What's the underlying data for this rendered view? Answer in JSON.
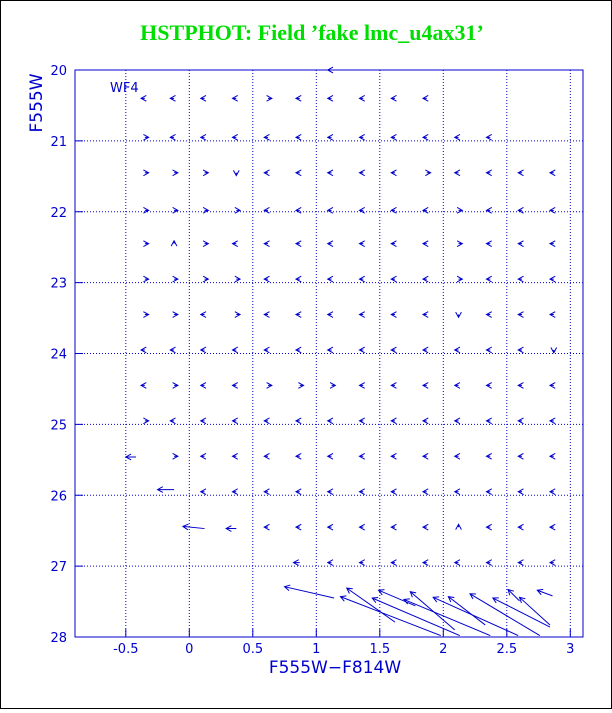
{
  "chart_data": {
    "type": "quiver",
    "title": "HSTPHOT: Field ’fake lmc_u4ax31’",
    "annotation": "WF4",
    "x_label": "F555W−F814W",
    "y_label": "F555W",
    "color": "#0000cc",
    "grid": true,
    "y_inverted": true,
    "xlim": [
      -0.9,
      3.1
    ],
    "ylim": [
      20,
      28
    ],
    "xticks": [
      -0.5,
      0,
      0.5,
      1,
      1.5,
      2,
      2.5,
      3
    ],
    "yticks": [
      20,
      21,
      22,
      23,
      24,
      25,
      26,
      27,
      28
    ],
    "vectors": [
      {
        "x": 1.12,
        "y": 20.0,
        "u": -0.03,
        "v": 0
      },
      {
        "x": -0.35,
        "y": 20.4,
        "u": -0.03,
        "v": 0
      },
      {
        "x": -0.12,
        "y": 20.4,
        "u": -0.03,
        "v": 0
      },
      {
        "x": 0.12,
        "y": 20.4,
        "u": -0.03,
        "v": 0
      },
      {
        "x": 0.37,
        "y": 20.4,
        "u": -0.03,
        "v": 0
      },
      {
        "x": 0.62,
        "y": 20.4,
        "u": 0.03,
        "v": 0
      },
      {
        "x": 0.87,
        "y": 20.4,
        "u": -0.03,
        "v": 0
      },
      {
        "x": 1.12,
        "y": 20.4,
        "u": -0.03,
        "v": 0
      },
      {
        "x": 1.37,
        "y": 20.4,
        "u": -0.03,
        "v": 0
      },
      {
        "x": 1.62,
        "y": 20.4,
        "u": -0.03,
        "v": 0
      },
      {
        "x": 1.87,
        "y": 20.4,
        "u": -0.03,
        "v": 0
      },
      {
        "x": -0.35,
        "y": 20.95,
        "u": 0.03,
        "v": 0
      },
      {
        "x": -0.12,
        "y": 20.95,
        "u": -0.03,
        "v": 0
      },
      {
        "x": 0.12,
        "y": 20.95,
        "u": -0.03,
        "v": 0
      },
      {
        "x": 0.37,
        "y": 20.95,
        "u": -0.03,
        "v": 0
      },
      {
        "x": 0.62,
        "y": 20.95,
        "u": -0.03,
        "v": 0
      },
      {
        "x": 0.87,
        "y": 20.95,
        "u": -0.03,
        "v": 0
      },
      {
        "x": 1.12,
        "y": 20.95,
        "u": -0.03,
        "v": 0
      },
      {
        "x": 1.37,
        "y": 20.95,
        "u": -0.03,
        "v": 0
      },
      {
        "x": 1.62,
        "y": 20.95,
        "u": -0.03,
        "v": 0
      },
      {
        "x": 1.87,
        "y": 20.95,
        "u": -0.03,
        "v": 0
      },
      {
        "x": 2.12,
        "y": 20.95,
        "u": -0.03,
        "v": 0
      },
      {
        "x": 2.37,
        "y": 20.95,
        "u": -0.03,
        "v": 0
      },
      {
        "x": -0.35,
        "y": 21.45,
        "u": 0.03,
        "v": 0
      },
      {
        "x": -0.12,
        "y": 21.45,
        "u": 0.03,
        "v": 0
      },
      {
        "x": 0.12,
        "y": 21.45,
        "u": 0.03,
        "v": 0
      },
      {
        "x": 0.37,
        "y": 21.45,
        "u": 0,
        "v": 0.04
      },
      {
        "x": 0.62,
        "y": 21.45,
        "u": -0.03,
        "v": 0
      },
      {
        "x": 0.87,
        "y": 21.45,
        "u": -0.03,
        "v": 0
      },
      {
        "x": 1.12,
        "y": 21.45,
        "u": -0.03,
        "v": 0
      },
      {
        "x": 1.37,
        "y": 21.45,
        "u": -0.03,
        "v": 0
      },
      {
        "x": 1.62,
        "y": 21.45,
        "u": -0.03,
        "v": 0
      },
      {
        "x": 1.87,
        "y": 21.45,
        "u": 0.03,
        "v": 0
      },
      {
        "x": 2.12,
        "y": 21.45,
        "u": -0.03,
        "v": 0
      },
      {
        "x": 2.37,
        "y": 21.45,
        "u": -0.03,
        "v": 0
      },
      {
        "x": 2.62,
        "y": 21.45,
        "u": -0.03,
        "v": 0
      },
      {
        "x": 2.87,
        "y": 21.45,
        "u": -0.03,
        "v": 0
      },
      {
        "x": -0.35,
        "y": 21.98,
        "u": 0.03,
        "v": 0
      },
      {
        "x": -0.12,
        "y": 21.98,
        "u": 0.03,
        "v": 0
      },
      {
        "x": 0.12,
        "y": 21.98,
        "u": 0.03,
        "v": 0
      },
      {
        "x": 0.37,
        "y": 21.98,
        "u": 0.03,
        "v": 0
      },
      {
        "x": 0.62,
        "y": 21.98,
        "u": -0.03,
        "v": 0
      },
      {
        "x": 0.87,
        "y": 21.98,
        "u": -0.03,
        "v": 0
      },
      {
        "x": 1.12,
        "y": 21.98,
        "u": -0.03,
        "v": 0
      },
      {
        "x": 1.37,
        "y": 21.98,
        "u": -0.03,
        "v": 0
      },
      {
        "x": 1.62,
        "y": 21.98,
        "u": -0.03,
        "v": 0
      },
      {
        "x": 1.87,
        "y": 21.98,
        "u": -0.03,
        "v": 0
      },
      {
        "x": 2.12,
        "y": 21.98,
        "u": 0.03,
        "v": 0
      },
      {
        "x": 2.37,
        "y": 21.98,
        "u": -0.03,
        "v": 0
      },
      {
        "x": 2.62,
        "y": 21.98,
        "u": -0.03,
        "v": 0
      },
      {
        "x": 2.87,
        "y": 21.98,
        "u": -0.03,
        "v": 0
      },
      {
        "x": -0.35,
        "y": 22.45,
        "u": 0.03,
        "v": 0
      },
      {
        "x": -0.12,
        "y": 22.45,
        "u": 0,
        "v": -0.04
      },
      {
        "x": 0.12,
        "y": 22.45,
        "u": 0.03,
        "v": 0
      },
      {
        "x": 0.37,
        "y": 22.45,
        "u": -0.03,
        "v": 0
      },
      {
        "x": 0.62,
        "y": 22.45,
        "u": -0.03,
        "v": 0
      },
      {
        "x": 0.87,
        "y": 22.45,
        "u": -0.03,
        "v": 0
      },
      {
        "x": 1.12,
        "y": 22.45,
        "u": -0.03,
        "v": 0
      },
      {
        "x": 1.37,
        "y": 22.45,
        "u": -0.03,
        "v": 0
      },
      {
        "x": 1.62,
        "y": 22.45,
        "u": -0.03,
        "v": 0
      },
      {
        "x": 1.87,
        "y": 22.45,
        "u": -0.03,
        "v": 0
      },
      {
        "x": 2.12,
        "y": 22.45,
        "u": 0.03,
        "v": 0
      },
      {
        "x": 2.37,
        "y": 22.45,
        "u": -0.03,
        "v": 0
      },
      {
        "x": 2.62,
        "y": 22.45,
        "u": -0.03,
        "v": 0
      },
      {
        "x": 2.87,
        "y": 22.45,
        "u": -0.03,
        "v": 0
      },
      {
        "x": -0.35,
        "y": 22.95,
        "u": 0.03,
        "v": 0
      },
      {
        "x": -0.12,
        "y": 22.95,
        "u": 0.03,
        "v": 0
      },
      {
        "x": 0.12,
        "y": 22.95,
        "u": 0.03,
        "v": 0
      },
      {
        "x": 0.37,
        "y": 22.95,
        "u": 0.03,
        "v": 0
      },
      {
        "x": 0.62,
        "y": 22.95,
        "u": -0.03,
        "v": 0
      },
      {
        "x": 0.87,
        "y": 22.95,
        "u": -0.03,
        "v": 0
      },
      {
        "x": 1.12,
        "y": 22.95,
        "u": -0.03,
        "v": 0
      },
      {
        "x": 1.37,
        "y": 22.95,
        "u": -0.03,
        "v": 0
      },
      {
        "x": 1.62,
        "y": 22.95,
        "u": -0.03,
        "v": 0
      },
      {
        "x": 1.87,
        "y": 22.95,
        "u": -0.03,
        "v": 0
      },
      {
        "x": 2.12,
        "y": 22.95,
        "u": 0.03,
        "v": 0
      },
      {
        "x": 2.37,
        "y": 22.95,
        "u": -0.03,
        "v": 0
      },
      {
        "x": 2.62,
        "y": 22.95,
        "u": -0.03,
        "v": 0
      },
      {
        "x": 2.87,
        "y": 22.95,
        "u": -0.03,
        "v": 0
      },
      {
        "x": -0.35,
        "y": 23.45,
        "u": 0.03,
        "v": 0
      },
      {
        "x": -0.12,
        "y": 23.45,
        "u": 0.03,
        "v": 0
      },
      {
        "x": 0.12,
        "y": 23.45,
        "u": -0.03,
        "v": 0
      },
      {
        "x": 0.37,
        "y": 23.45,
        "u": 0.03,
        "v": 0
      },
      {
        "x": 0.62,
        "y": 23.45,
        "u": -0.03,
        "v": 0
      },
      {
        "x": 0.87,
        "y": 23.45,
        "u": -0.03,
        "v": 0
      },
      {
        "x": 1.12,
        "y": 23.45,
        "u": -0.03,
        "v": 0
      },
      {
        "x": 1.37,
        "y": 23.45,
        "u": -0.03,
        "v": 0
      },
      {
        "x": 1.62,
        "y": 23.45,
        "u": -0.03,
        "v": 0
      },
      {
        "x": 1.87,
        "y": 23.45,
        "u": -0.03,
        "v": 0
      },
      {
        "x": 2.12,
        "y": 23.45,
        "u": 0,
        "v": 0.04
      },
      {
        "x": 2.37,
        "y": 23.45,
        "u": -0.03,
        "v": 0
      },
      {
        "x": 2.62,
        "y": 23.45,
        "u": -0.03,
        "v": 0
      },
      {
        "x": 2.87,
        "y": 23.45,
        "u": -0.03,
        "v": 0
      },
      {
        "x": -0.35,
        "y": 23.95,
        "u": -0.03,
        "v": 0
      },
      {
        "x": -0.12,
        "y": 23.95,
        "u": -0.03,
        "v": 0
      },
      {
        "x": 0.12,
        "y": 23.95,
        "u": -0.03,
        "v": 0
      },
      {
        "x": 0.37,
        "y": 23.95,
        "u": -0.03,
        "v": 0
      },
      {
        "x": 0.62,
        "y": 23.95,
        "u": -0.03,
        "v": 0
      },
      {
        "x": 0.87,
        "y": 23.95,
        "u": -0.03,
        "v": 0
      },
      {
        "x": 1.12,
        "y": 23.95,
        "u": -0.03,
        "v": 0
      },
      {
        "x": 1.37,
        "y": 23.95,
        "u": -0.03,
        "v": 0
      },
      {
        "x": 1.62,
        "y": 23.95,
        "u": -0.03,
        "v": 0
      },
      {
        "x": 1.87,
        "y": 23.95,
        "u": -0.03,
        "v": 0
      },
      {
        "x": 2.12,
        "y": 23.95,
        "u": -0.03,
        "v": 0
      },
      {
        "x": 2.37,
        "y": 23.95,
        "u": -0.03,
        "v": 0
      },
      {
        "x": 2.62,
        "y": 23.95,
        "u": -0.03,
        "v": 0
      },
      {
        "x": 2.87,
        "y": 23.95,
        "u": 0,
        "v": 0.04
      },
      {
        "x": -0.35,
        "y": 24.45,
        "u": -0.03,
        "v": 0
      },
      {
        "x": -0.12,
        "y": 24.45,
        "u": 0.03,
        "v": 0
      },
      {
        "x": 0.12,
        "y": 24.45,
        "u": -0.03,
        "v": 0
      },
      {
        "x": 0.37,
        "y": 24.45,
        "u": -0.03,
        "v": 0
      },
      {
        "x": 0.62,
        "y": 24.45,
        "u": 0.03,
        "v": 0
      },
      {
        "x": 0.87,
        "y": 24.45,
        "u": 0.03,
        "v": 0
      },
      {
        "x": 1.12,
        "y": 24.45,
        "u": 0.03,
        "v": 0
      },
      {
        "x": 1.37,
        "y": 24.45,
        "u": -0.03,
        "v": 0
      },
      {
        "x": 1.62,
        "y": 24.45,
        "u": -0.03,
        "v": 0
      },
      {
        "x": 1.87,
        "y": 24.45,
        "u": -0.03,
        "v": 0
      },
      {
        "x": 2.12,
        "y": 24.45,
        "u": -0.03,
        "v": 0
      },
      {
        "x": 2.37,
        "y": 24.45,
        "u": -0.03,
        "v": 0
      },
      {
        "x": 2.62,
        "y": 24.45,
        "u": -0.03,
        "v": 0
      },
      {
        "x": 2.87,
        "y": 24.45,
        "u": -0.03,
        "v": 0
      },
      {
        "x": -0.35,
        "y": 24.95,
        "u": 0.03,
        "v": 0
      },
      {
        "x": -0.12,
        "y": 24.95,
        "u": -0.03,
        "v": 0
      },
      {
        "x": 0.12,
        "y": 24.95,
        "u": -0.03,
        "v": 0
      },
      {
        "x": 0.37,
        "y": 24.95,
        "u": -0.03,
        "v": 0
      },
      {
        "x": 0.62,
        "y": 24.95,
        "u": -0.03,
        "v": 0
      },
      {
        "x": 0.87,
        "y": 24.95,
        "u": -0.03,
        "v": 0
      },
      {
        "x": 1.12,
        "y": 24.95,
        "u": -0.03,
        "v": 0
      },
      {
        "x": 1.37,
        "y": 24.95,
        "u": -0.03,
        "v": 0
      },
      {
        "x": 1.62,
        "y": 24.95,
        "u": -0.03,
        "v": 0
      },
      {
        "x": 1.87,
        "y": 24.95,
        "u": -0.03,
        "v": 0
      },
      {
        "x": 2.12,
        "y": 24.95,
        "u": -0.03,
        "v": 0
      },
      {
        "x": 2.37,
        "y": 24.95,
        "u": -0.03,
        "v": 0
      },
      {
        "x": 2.62,
        "y": 24.95,
        "u": -0.03,
        "v": 0
      },
      {
        "x": 2.87,
        "y": 24.95,
        "u": -0.03,
        "v": 0
      },
      {
        "x": -0.42,
        "y": 25.46,
        "u": -0.08,
        "v": 0
      },
      {
        "x": -0.12,
        "y": 25.45,
        "u": 0.03,
        "v": 0
      },
      {
        "x": 0.12,
        "y": 25.45,
        "u": -0.03,
        "v": 0
      },
      {
        "x": 0.37,
        "y": 25.45,
        "u": -0.03,
        "v": 0
      },
      {
        "x": 0.62,
        "y": 25.45,
        "u": -0.03,
        "v": 0
      },
      {
        "x": 0.87,
        "y": 25.45,
        "u": -0.03,
        "v": 0
      },
      {
        "x": 1.12,
        "y": 25.45,
        "u": -0.03,
        "v": 0
      },
      {
        "x": 1.37,
        "y": 25.45,
        "u": -0.03,
        "v": 0
      },
      {
        "x": 1.62,
        "y": 25.45,
        "u": -0.03,
        "v": 0
      },
      {
        "x": 1.87,
        "y": 25.45,
        "u": -0.03,
        "v": 0
      },
      {
        "x": 2.12,
        "y": 25.45,
        "u": -0.03,
        "v": 0
      },
      {
        "x": 2.37,
        "y": 25.45,
        "u": -0.03,
        "v": 0
      },
      {
        "x": 2.62,
        "y": 25.45,
        "u": -0.03,
        "v": 0
      },
      {
        "x": 2.87,
        "y": 25.45,
        "u": -0.03,
        "v": 0
      },
      {
        "x": -0.12,
        "y": 25.92,
        "u": -0.13,
        "v": 0
      },
      {
        "x": 0.12,
        "y": 25.95,
        "u": -0.03,
        "v": 0
      },
      {
        "x": 0.37,
        "y": 25.95,
        "u": -0.03,
        "v": 0
      },
      {
        "x": 0.62,
        "y": 25.95,
        "u": -0.03,
        "v": 0
      },
      {
        "x": 0.87,
        "y": 25.95,
        "u": -0.03,
        "v": 0
      },
      {
        "x": 1.12,
        "y": 25.95,
        "u": -0.03,
        "v": 0
      },
      {
        "x": 1.37,
        "y": 25.95,
        "u": -0.03,
        "v": 0
      },
      {
        "x": 1.62,
        "y": 25.95,
        "u": -0.03,
        "v": 0
      },
      {
        "x": 1.87,
        "y": 25.95,
        "u": -0.03,
        "v": 0
      },
      {
        "x": 2.12,
        "y": 25.95,
        "u": -0.03,
        "v": 0
      },
      {
        "x": 2.37,
        "y": 25.95,
        "u": -0.03,
        "v": 0
      },
      {
        "x": 2.62,
        "y": 25.95,
        "u": -0.03,
        "v": 0
      },
      {
        "x": 2.87,
        "y": 25.95,
        "u": -0.03,
        "v": 0
      },
      {
        "x": 0.12,
        "y": 26.47,
        "u": -0.17,
        "v": -0.03
      },
      {
        "x": 0.37,
        "y": 26.47,
        "u": -0.08,
        "v": 0
      },
      {
        "x": 0.62,
        "y": 26.45,
        "u": -0.03,
        "v": 0
      },
      {
        "x": 0.87,
        "y": 26.45,
        "u": -0.03,
        "v": 0
      },
      {
        "x": 1.12,
        "y": 26.45,
        "u": -0.03,
        "v": 0
      },
      {
        "x": 1.37,
        "y": 26.45,
        "u": -0.03,
        "v": 0
      },
      {
        "x": 1.62,
        "y": 26.45,
        "u": -0.03,
        "v": 0
      },
      {
        "x": 1.87,
        "y": 26.45,
        "u": -0.03,
        "v": 0
      },
      {
        "x": 2.12,
        "y": 26.45,
        "u": 0,
        "v": -0.04
      },
      {
        "x": 2.37,
        "y": 26.45,
        "u": -0.03,
        "v": 0
      },
      {
        "x": 2.62,
        "y": 26.45,
        "u": -0.03,
        "v": 0
      },
      {
        "x": 2.87,
        "y": 26.45,
        "u": -0.03,
        "v": 0
      },
      {
        "x": 0.87,
        "y": 26.95,
        "u": -0.05,
        "v": 0
      },
      {
        "x": 1.12,
        "y": 26.95,
        "u": -0.03,
        "v": 0
      },
      {
        "x": 1.37,
        "y": 26.95,
        "u": -0.03,
        "v": 0
      },
      {
        "x": 1.62,
        "y": 26.95,
        "u": -0.03,
        "v": 0
      },
      {
        "x": 1.87,
        "y": 26.95,
        "u": -0.03,
        "v": 0
      },
      {
        "x": 2.12,
        "y": 26.95,
        "u": -0.03,
        "v": 0
      },
      {
        "x": 2.37,
        "y": 26.95,
        "u": -0.03,
        "v": 0
      },
      {
        "x": 2.62,
        "y": 26.95,
        "u": -0.03,
        "v": 0
      },
      {
        "x": 2.87,
        "y": 26.95,
        "u": -0.03,
        "v": 0
      },
      {
        "x": 1.14,
        "y": 27.45,
        "u": -0.39,
        "v": -0.16
      },
      {
        "x": 1.98,
        "y": 27.98,
        "u": -0.79,
        "v": -0.55
      },
      {
        "x": 1.62,
        "y": 27.79,
        "u": -0.38,
        "v": -0.48
      },
      {
        "x": 2.13,
        "y": 27.98,
        "u": -0.69,
        "v": -0.53
      },
      {
        "x": 1.78,
        "y": 27.56,
        "u": -0.29,
        "v": -0.22
      },
      {
        "x": 2.37,
        "y": 27.98,
        "u": -0.68,
        "v": -0.51
      },
      {
        "x": 2.09,
        "y": 27.9,
        "u": -0.35,
        "v": -0.54
      },
      {
        "x": 2.59,
        "y": 27.98,
        "u": -0.67,
        "v": -0.54
      },
      {
        "x": 2.33,
        "y": 27.83,
        "u": -0.29,
        "v": -0.4
      },
      {
        "x": 2.76,
        "y": 27.98,
        "u": -0.55,
        "v": -0.59
      },
      {
        "x": 2.84,
        "y": 27.86,
        "u": -0.45,
        "v": -0.41
      },
      {
        "x": 2.6,
        "y": 27.49,
        "u": -0.09,
        "v": -0.16
      },
      {
        "x": 2.84,
        "y": 27.83,
        "u": -0.24,
        "v": -0.39
      },
      {
        "x": 2.86,
        "y": 27.42,
        "u": -0.12,
        "v": -0.08
      }
    ]
  }
}
